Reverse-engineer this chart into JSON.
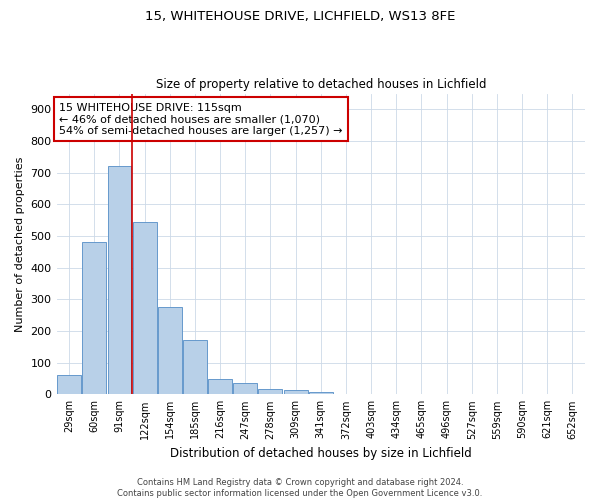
{
  "title_line1": "15, WHITEHOUSE DRIVE, LICHFIELD, WS13 8FE",
  "title_line2": "Size of property relative to detached houses in Lichfield",
  "xlabel": "Distribution of detached houses by size in Lichfield",
  "ylabel": "Number of detached properties",
  "bin_labels": [
    "29sqm",
    "60sqm",
    "91sqm",
    "122sqm",
    "154sqm",
    "185sqm",
    "216sqm",
    "247sqm",
    "278sqm",
    "309sqm",
    "341sqm",
    "372sqm",
    "403sqm",
    "434sqm",
    "465sqm",
    "496sqm",
    "527sqm",
    "559sqm",
    "590sqm",
    "621sqm",
    "652sqm"
  ],
  "bar_values": [
    60,
    480,
    720,
    545,
    275,
    170,
    47,
    35,
    18,
    14,
    8,
    0,
    0,
    0,
    0,
    0,
    0,
    0,
    0,
    0,
    0
  ],
  "bar_color": "#b8d0e8",
  "bar_edge_color": "#6699cc",
  "vline_color": "#cc0000",
  "annotation_text": "15 WHITEHOUSE DRIVE: 115sqm\n← 46% of detached houses are smaller (1,070)\n54% of semi-detached houses are larger (1,257) →",
  "annotation_box_edge": "#cc0000",
  "annotation_fontsize": 8,
  "ylim": [
    0,
    950
  ],
  "yticks": [
    0,
    100,
    200,
    300,
    400,
    500,
    600,
    700,
    800,
    900
  ],
  "footnote": "Contains HM Land Registry data © Crown copyright and database right 2024.\nContains public sector information licensed under the Open Government Licence v3.0.",
  "background_color": "#ffffff",
  "grid_color": "#ccd9e8",
  "title1_fontsize": 9.5,
  "title2_fontsize": 8.5,
  "xlabel_fontsize": 8.5,
  "ylabel_fontsize": 8,
  "ytick_fontsize": 8,
  "xtick_fontsize": 7,
  "footnote_fontsize": 6
}
